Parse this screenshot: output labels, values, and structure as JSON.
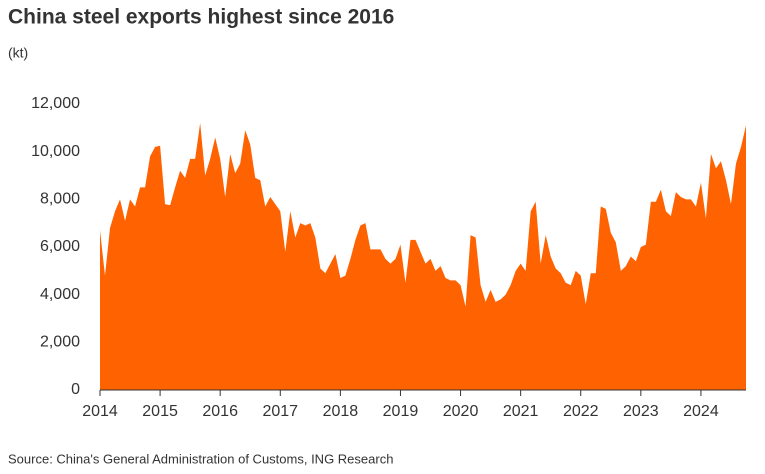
{
  "chart_data": {
    "type": "area",
    "title": "China steel exports highest since 2016",
    "subtitle": "(kt)",
    "source": "Source: China's General Administration of Customs, ING Research",
    "color": "#ff6200",
    "xlim": [
      2014,
      2024.75
    ],
    "xticks": [
      2014,
      2015,
      2016,
      2017,
      2018,
      2019,
      2020,
      2021,
      2022,
      2023,
      2024
    ],
    "ylim": [
      0,
      12000
    ],
    "yticks": [
      0,
      {
        "value": 2000,
        "label": "2,000"
      },
      {
        "value": 4000,
        "label": "4,000"
      },
      {
        "value": 6000,
        "label": "6,000"
      },
      {
        "value": 8000,
        "label": "8,000"
      },
      {
        "value": 10000,
        "label": "10,000"
      },
      {
        "value": 12000,
        "label": "12,000"
      }
    ],
    "grid": false,
    "x": [
      2014,
      2014.083,
      2014.167,
      2014.25,
      2014.333,
      2014.417,
      2014.5,
      2014.583,
      2014.667,
      2014.75,
      2014.833,
      2014.917,
      2015,
      2015.083,
      2015.167,
      2015.25,
      2015.333,
      2015.417,
      2015.5,
      2015.583,
      2015.667,
      2015.75,
      2015.833,
      2015.917,
      2016,
      2016.083,
      2016.167,
      2016.25,
      2016.333,
      2016.417,
      2016.5,
      2016.583,
      2016.667,
      2016.75,
      2016.833,
      2016.917,
      2017,
      2017.083,
      2017.167,
      2017.25,
      2017.333,
      2017.417,
      2017.5,
      2017.583,
      2017.667,
      2017.75,
      2017.833,
      2017.917,
      2018,
      2018.083,
      2018.167,
      2018.25,
      2018.333,
      2018.417,
      2018.5,
      2018.583,
      2018.667,
      2018.75,
      2018.833,
      2018.917,
      2019,
      2019.083,
      2019.167,
      2019.25,
      2019.333,
      2019.417,
      2019.5,
      2019.583,
      2019.667,
      2019.75,
      2019.833,
      2019.917,
      2020,
      2020.083,
      2020.167,
      2020.25,
      2020.333,
      2020.417,
      2020.5,
      2020.583,
      2020.667,
      2020.75,
      2020.833,
      2020.917,
      2021,
      2021.083,
      2021.167,
      2021.25,
      2021.333,
      2021.417,
      2021.5,
      2021.583,
      2021.667,
      2021.75,
      2021.833,
      2021.917,
      2022,
      2022.083,
      2022.167,
      2022.25,
      2022.333,
      2022.417,
      2022.5,
      2022.583,
      2022.667,
      2022.75,
      2022.833,
      2022.917,
      2023,
      2023.083,
      2023.167,
      2023.25,
      2023.333,
      2023.417,
      2023.5,
      2023.583,
      2023.667,
      2023.75,
      2023.833,
      2023.917,
      2024,
      2024.083,
      2024.167,
      2024.25,
      2024.333,
      2024.417,
      2024.5,
      2024.583,
      2024.667,
      2024.75
    ],
    "values": [
      6700,
      4800,
      6800,
      7500,
      8000,
      7100,
      8000,
      7700,
      8500,
      8500,
      9800,
      10200,
      10250,
      7800,
      7750,
      8500,
      9200,
      8900,
      9700,
      9700,
      11200,
      9000,
      9700,
      10600,
      9700,
      8100,
      9900,
      9100,
      9500,
      10900,
      10300,
      8900,
      8800,
      7700,
      8100,
      7800,
      7500,
      5800,
      7500,
      6400,
      7000,
      6900,
      7000,
      6400,
      5100,
      4900,
      5300,
      5700,
      4700,
      4800,
      5500,
      6300,
      6900,
      7000,
      5900,
      5900,
      5900,
      5500,
      5300,
      5500,
      6100,
      4500,
      6300,
      6300,
      5800,
      5300,
      5500,
      5000,
      5200,
      4700,
      4600,
      4600,
      4400,
      3500,
      6500,
      6400,
      4400,
      3700,
      4200,
      3700,
      3800,
      4000,
      4400,
      5000,
      5300,
      5000,
      7500,
      7900,
      5300,
      6500,
      5600,
      5100,
      4900,
      4500,
      4400,
      5000,
      4800,
      3600,
      4900,
      4900,
      7700,
      7600,
      6600,
      6200,
      5000,
      5200,
      5600,
      5400,
      6000,
      6100,
      7900,
      7900,
      8400,
      7500,
      7300,
      8300,
      8100,
      8000,
      8000,
      7700,
      8700,
      7200,
      9900,
      9300,
      9600,
      8800,
      7800,
      9500,
      10200,
      11100
    ]
  }
}
